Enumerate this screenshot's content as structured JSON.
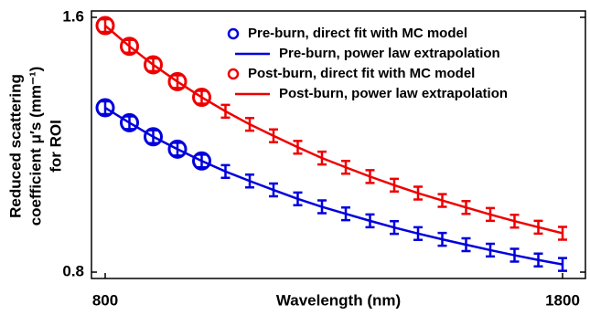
{
  "chart_data": {
    "type": "line",
    "xlabel": "Wavelength (nm)",
    "ylabel": [
      "Reduced scattering",
      "coefficient μ′s (mm⁻¹)",
      "for ROI"
    ],
    "xlim": [
      770,
      1850
    ],
    "ylim": [
      0.78,
      1.62
    ],
    "xticks": [
      800,
      1800
    ],
    "yticks": [
      0.8,
      1.6
    ],
    "legend": "upper right",
    "series": [
      {
        "name": "Pre-burn, direct fit with MC model",
        "color": "#0000dd",
        "style": "circle",
        "x": [
          800,
          853,
          905,
          958,
          1011
        ],
        "values": [
          1.316,
          1.269,
          1.225,
          1.186,
          1.149
        ]
      },
      {
        "name": "Pre-burn, power law extrapolation",
        "color": "#0000dd",
        "style": "line",
        "x": [
          800,
          853,
          905,
          958,
          1011,
          1063,
          1116,
          1168,
          1221,
          1274,
          1326,
          1379,
          1432,
          1484,
          1537,
          1589,
          1642,
          1695,
          1747,
          1800
        ],
        "values": [
          1.316,
          1.269,
          1.225,
          1.186,
          1.149,
          1.116,
          1.086,
          1.058,
          1.03,
          1.005,
          0.983,
          0.961,
          0.94,
          0.921,
          0.903,
          0.886,
          0.869,
          0.853,
          0.838,
          0.824
        ],
        "errors": [
          0.02,
          0.02,
          0.02,
          0.02,
          0.02,
          0.02,
          0.02,
          0.02,
          0.02,
          0.02,
          0.02,
          0.02,
          0.02,
          0.02,
          0.02,
          0.02,
          0.02,
          0.02,
          0.02,
          0.02
        ]
      },
      {
        "name": "Post-burn, direct fit with MC model",
        "color": "#ee0000",
        "style": "circle",
        "x": [
          800,
          853,
          905,
          958,
          1011
        ],
        "values": [
          1.574,
          1.509,
          1.451,
          1.398,
          1.349
        ]
      },
      {
        "name": "Post-burn, power law extrapolation",
        "color": "#ee0000",
        "style": "line",
        "x": [
          800,
          853,
          905,
          958,
          1011,
          1063,
          1116,
          1168,
          1221,
          1274,
          1326,
          1379,
          1432,
          1484,
          1537,
          1589,
          1642,
          1695,
          1747,
          1800
        ],
        "values": [
          1.574,
          1.509,
          1.451,
          1.398,
          1.349,
          1.305,
          1.264,
          1.228,
          1.192,
          1.158,
          1.129,
          1.1,
          1.073,
          1.048,
          1.025,
          1.003,
          0.981,
          0.96,
          0.941,
          0.922
        ],
        "errors": [
          0.02,
          0.02,
          0.02,
          0.02,
          0.02,
          0.02,
          0.02,
          0.02,
          0.02,
          0.02,
          0.02,
          0.02,
          0.02,
          0.02,
          0.02,
          0.02,
          0.02,
          0.02,
          0.02,
          0.02
        ]
      }
    ]
  }
}
